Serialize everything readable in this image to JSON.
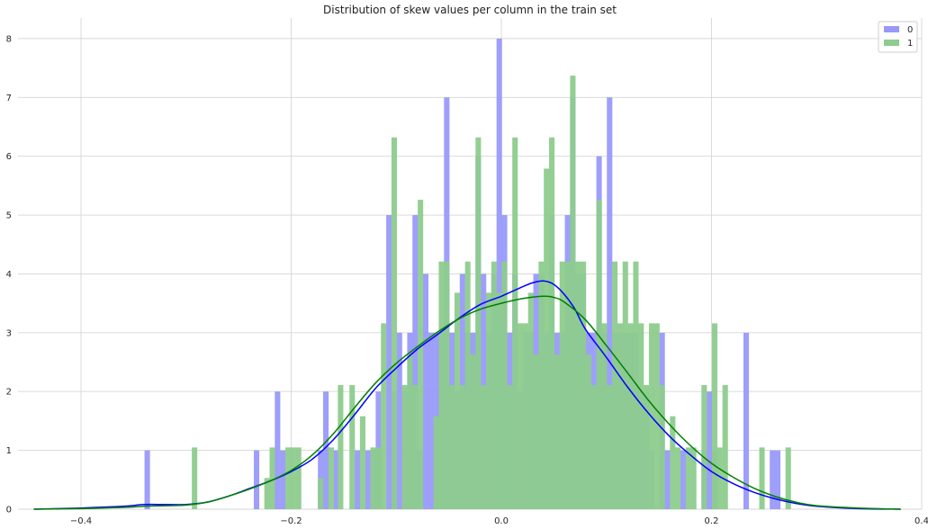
{
  "chart_data": {
    "type": "histogram_kde",
    "title": "Distribution of skew values per column in the train set",
    "xlabel": "",
    "ylabel": "",
    "xlim": [
      -0.46,
      0.4
    ],
    "ylim": [
      0,
      8.35
    ],
    "x_ticks": [
      -0.4,
      -0.2,
      0.0,
      0.2,
      0.4
    ],
    "x_tick_labels": [
      "−0.4",
      "−0.2",
      "0.0",
      "0.2",
      "0.4"
    ],
    "y_ticks": [
      0,
      1,
      2,
      3,
      4,
      5,
      6,
      7,
      8
    ],
    "y_tick_labels": [
      "0",
      "1",
      "2",
      "3",
      "4",
      "5",
      "6",
      "7",
      "8"
    ],
    "grid": true,
    "legend_position": "upper right",
    "bin_width": 0.0052,
    "series": [
      {
        "name": "0",
        "color": "#0000ff",
        "bar_color": "#9999fb",
        "bars": [
          [
            -0.337,
            1.0
          ],
          [
            -0.233,
            1.0
          ],
          [
            -0.213,
            2.0
          ],
          [
            -0.208,
            1.0
          ],
          [
            -0.172,
            1.0
          ],
          [
            -0.167,
            2.0
          ],
          [
            -0.157,
            1.0
          ],
          [
            -0.137,
            1.0
          ],
          [
            -0.127,
            1.0
          ],
          [
            -0.122,
            1.0
          ],
          [
            -0.117,
            2.0
          ],
          [
            -0.107,
            5.0
          ],
          [
            -0.102,
            2.0
          ],
          [
            -0.097,
            3.0
          ],
          [
            -0.092,
            2.0
          ],
          [
            -0.087,
            3.0
          ],
          [
            -0.082,
            5.0
          ],
          [
            -0.077,
            1.0
          ],
          [
            -0.072,
            4.0
          ],
          [
            -0.067,
            3.0
          ],
          [
            -0.062,
            3.0
          ],
          [
            -0.057,
            3.0
          ],
          [
            -0.052,
            7.0
          ],
          [
            -0.047,
            3.0
          ],
          [
            -0.042,
            2.0
          ],
          [
            -0.037,
            4.0
          ],
          [
            -0.032,
            3.0
          ],
          [
            -0.027,
            3.0
          ],
          [
            -0.022,
            6.0
          ],
          [
            -0.017,
            4.0
          ],
          [
            -0.012,
            3.0
          ],
          [
            -0.007,
            4.0
          ],
          [
            -0.002,
            8.0
          ],
          [
            0.003,
            5.0
          ],
          [
            0.008,
            3.0
          ],
          [
            0.013,
            4.0
          ],
          [
            0.018,
            2.0
          ],
          [
            0.023,
            3.0
          ],
          [
            0.028,
            3.0
          ],
          [
            0.033,
            4.0
          ],
          [
            0.038,
            4.0
          ],
          [
            0.043,
            3.0
          ],
          [
            0.048,
            5.0
          ],
          [
            0.053,
            3.0
          ],
          [
            0.058,
            3.0
          ],
          [
            0.063,
            5.0
          ],
          [
            0.068,
            7.0
          ],
          [
            0.073,
            4.0
          ],
          [
            0.078,
            4.0
          ],
          [
            0.083,
            3.0
          ],
          [
            0.088,
            3.0
          ],
          [
            0.093,
            6.0
          ],
          [
            0.098,
            3.0
          ],
          [
            0.103,
            7.0
          ],
          [
            0.108,
            3.0
          ],
          [
            0.113,
            3.0
          ],
          [
            0.118,
            3.0
          ],
          [
            0.123,
            3.0
          ],
          [
            0.128,
            3.0
          ],
          [
            0.133,
            2.0
          ],
          [
            0.138,
            2.0
          ],
          [
            0.143,
            1.0
          ],
          [
            0.153,
            3.0
          ],
          [
            0.158,
            1.0
          ],
          [
            0.173,
            1.0
          ],
          [
            0.193,
            1.0
          ],
          [
            0.198,
            2.0
          ],
          [
            0.203,
            1.0
          ],
          [
            0.233,
            3.0
          ],
          [
            0.258,
            1.0
          ],
          [
            0.263,
            1.0
          ]
        ]
      },
      {
        "name": "1",
        "color": "#008000",
        "bar_color": "#8dcc8d",
        "bars": [
          [
            -0.292,
            1.05
          ],
          [
            -0.223,
            0.53
          ],
          [
            -0.218,
            1.05
          ],
          [
            -0.203,
            1.05
          ],
          [
            -0.198,
            1.05
          ],
          [
            -0.193,
            1.05
          ],
          [
            -0.172,
            0.53
          ],
          [
            -0.162,
            1.05
          ],
          [
            -0.153,
            2.11
          ],
          [
            -0.142,
            2.11
          ],
          [
            -0.132,
            1.58
          ],
          [
            -0.122,
            1.05
          ],
          [
            -0.117,
            1.05
          ],
          [
            -0.112,
            3.16
          ],
          [
            -0.102,
            6.32
          ],
          [
            -0.092,
            2.11
          ],
          [
            -0.087,
            2.63
          ],
          [
            -0.082,
            2.11
          ],
          [
            -0.077,
            5.26
          ],
          [
            -0.062,
            1.58
          ],
          [
            -0.057,
            4.21
          ],
          [
            -0.052,
            4.21
          ],
          [
            -0.047,
            2.11
          ],
          [
            -0.042,
            3.68
          ],
          [
            -0.037,
            2.11
          ],
          [
            -0.032,
            4.21
          ],
          [
            -0.027,
            2.63
          ],
          [
            -0.022,
            6.32
          ],
          [
            -0.017,
            2.11
          ],
          [
            -0.012,
            3.68
          ],
          [
            -0.007,
            4.21
          ],
          [
            -0.002,
            3.68
          ],
          [
            0.003,
            4.21
          ],
          [
            0.008,
            2.11
          ],
          [
            0.013,
            6.32
          ],
          [
            0.018,
            3.16
          ],
          [
            0.023,
            3.16
          ],
          [
            0.028,
            3.68
          ],
          [
            0.033,
            2.63
          ],
          [
            0.038,
            4.21
          ],
          [
            0.043,
            5.79
          ],
          [
            0.048,
            6.32
          ],
          [
            0.053,
            2.63
          ],
          [
            0.058,
            4.21
          ],
          [
            0.063,
            4.21
          ],
          [
            0.068,
            7.37
          ],
          [
            0.073,
            4.21
          ],
          [
            0.078,
            4.21
          ],
          [
            0.083,
            2.63
          ],
          [
            0.088,
            2.11
          ],
          [
            0.093,
            5.26
          ],
          [
            0.098,
            3.16
          ],
          [
            0.103,
            2.11
          ],
          [
            0.108,
            4.21
          ],
          [
            0.113,
            3.16
          ],
          [
            0.118,
            4.21
          ],
          [
            0.123,
            3.16
          ],
          [
            0.128,
            4.21
          ],
          [
            0.133,
            3.16
          ],
          [
            0.138,
            2.11
          ],
          [
            0.143,
            3.16
          ],
          [
            0.148,
            3.16
          ],
          [
            0.153,
            2.11
          ],
          [
            0.163,
            1.58
          ],
          [
            0.168,
            1.05
          ],
          [
            0.178,
            1.05
          ],
          [
            0.183,
            1.05
          ],
          [
            0.193,
            2.11
          ],
          [
            0.203,
            3.16
          ],
          [
            0.208,
            1.05
          ],
          [
            0.213,
            2.11
          ],
          [
            0.248,
            1.05
          ],
          [
            0.273,
            1.05
          ]
        ]
      }
    ],
    "kde": [
      {
        "name": "0",
        "color": "#0000ff",
        "x": [
          -0.445,
          -0.4,
          -0.36,
          -0.34,
          -0.32,
          -0.3,
          -0.28,
          -0.26,
          -0.24,
          -0.22,
          -0.2,
          -0.18,
          -0.16,
          -0.14,
          -0.12,
          -0.1,
          -0.08,
          -0.06,
          -0.04,
          -0.02,
          0.0,
          0.02,
          0.03,
          0.04,
          0.05,
          0.06,
          0.07,
          0.08,
          0.1,
          0.12,
          0.14,
          0.16,
          0.18,
          0.2,
          0.22,
          0.24,
          0.26,
          0.28,
          0.3,
          0.34,
          0.38
        ],
        "y": [
          0.0,
          0.02,
          0.05,
          0.08,
          0.08,
          0.08,
          0.12,
          0.22,
          0.35,
          0.48,
          0.64,
          0.85,
          1.18,
          1.6,
          2.05,
          2.4,
          2.72,
          2.98,
          3.25,
          3.48,
          3.62,
          3.78,
          3.85,
          3.88,
          3.82,
          3.65,
          3.4,
          3.06,
          2.58,
          2.08,
          1.63,
          1.24,
          0.92,
          0.64,
          0.44,
          0.29,
          0.18,
          0.1,
          0.05,
          0.01,
          0.0
        ]
      },
      {
        "name": "1",
        "color": "#008000",
        "x": [
          -0.445,
          -0.4,
          -0.36,
          -0.34,
          -0.32,
          -0.3,
          -0.28,
          -0.26,
          -0.24,
          -0.22,
          -0.2,
          -0.18,
          -0.16,
          -0.14,
          -0.12,
          -0.1,
          -0.08,
          -0.06,
          -0.04,
          -0.02,
          0.0,
          0.02,
          0.04,
          0.05,
          0.06,
          0.08,
          0.1,
          0.12,
          0.14,
          0.16,
          0.18,
          0.2,
          0.22,
          0.24,
          0.26,
          0.28,
          0.3,
          0.34,
          0.38
        ],
        "y": [
          0.0,
          0.01,
          0.03,
          0.05,
          0.06,
          0.07,
          0.12,
          0.22,
          0.34,
          0.48,
          0.66,
          0.92,
          1.28,
          1.72,
          2.14,
          2.48,
          2.76,
          3.02,
          3.24,
          3.4,
          3.5,
          3.58,
          3.62,
          3.6,
          3.52,
          3.22,
          2.78,
          2.32,
          1.85,
          1.44,
          1.08,
          0.78,
          0.55,
          0.36,
          0.22,
          0.12,
          0.06,
          0.02,
          0.0
        ]
      }
    ]
  }
}
